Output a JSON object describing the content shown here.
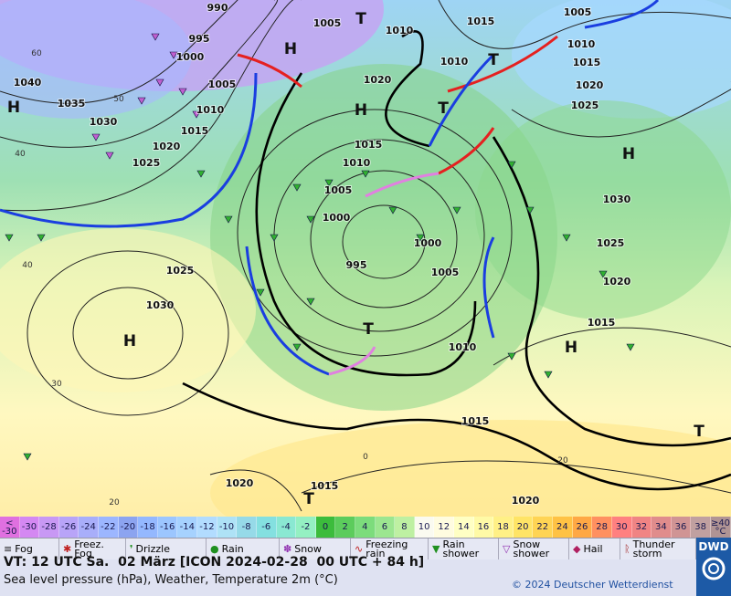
{
  "map": {
    "isobar_labels": [
      990,
      995,
      1000,
      1005,
      1010,
      1015,
      1020,
      1025,
      1030,
      1035,
      1040,
      1005,
      1010,
      1020,
      1015,
      1005,
      1010,
      1015,
      1020,
      1025,
      1010,
      1015,
      1010,
      1005,
      1000,
      995,
      1000,
      1005,
      1025,
      1030,
      1030,
      1025,
      1020,
      1015,
      1010,
      1015,
      1020,
      1015,
      1020
    ],
    "pressure_centers": [
      "H",
      "H",
      "H",
      "T",
      "T",
      "T",
      "H",
      "H",
      "T",
      "H",
      "T",
      "T"
    ],
    "temperature_labels": [
      60,
      50,
      40,
      40,
      30,
      20,
      0,
      20
    ]
  },
  "legend": {
    "temperature_scale": {
      "labels": [
        "< -30",
        -30,
        -28,
        -26,
        -24,
        -22,
        -20,
        -18,
        -16,
        -14,
        -12,
        -10,
        -8,
        -6,
        -4,
        -2,
        0,
        2,
        4,
        6,
        8,
        10,
        12,
        14,
        16,
        18,
        20,
        22,
        24,
        26,
        28,
        30,
        32,
        34,
        36,
        38,
        "≥40 °C"
      ],
      "colors": [
        "#e070e0",
        "#d488f2",
        "#c898f4",
        "#b8a4f8",
        "#a8aefa",
        "#9cb6ff",
        "#8ca4f0",
        "#94b8ff",
        "#9cc6ff",
        "#a6d2ff",
        "#b2dcff",
        "#aee2f6",
        "#96dae8",
        "#84e0e0",
        "#8ae8d2",
        "#94f0c2",
        "#3cbc3c",
        "#5ccc5c",
        "#7cdc7c",
        "#9ce690",
        "#bef0a2",
        "#fafaf0",
        "#fffce0",
        "#ffffc4",
        "#fffaa6",
        "#fff086",
        "#ffe466",
        "#ffd454",
        "#ffc244",
        "#ffa844",
        "#ff9060",
        "#ff8080",
        "#f08484",
        "#e08c8c",
        "#d09494",
        "#c0a0a0",
        "#b09494"
      ]
    },
    "weather": [
      "Fog",
      "Freez. Fog",
      "Drizzle",
      "Rain",
      "Snow",
      "Freezing rain",
      "Rain shower",
      "Snow shower",
      "Hail",
      "Thunder storm"
    ]
  },
  "footer": {
    "valid_time": "VT: 12 UTC Sa.  02 März [ICON 2024-02-28  00 UTC + 84 h]",
    "description": "Sea level pressure (hPa), Weather, Temperature 2m (°C)",
    "copyright": "© 2024 Deutscher Wetterdienst",
    "logo": "DWD"
  }
}
